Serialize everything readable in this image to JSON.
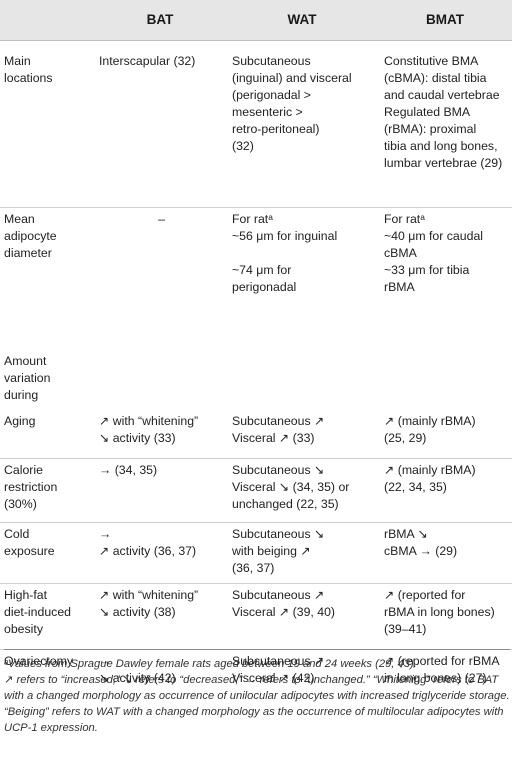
{
  "headers": [
    "",
    "BAT",
    "WAT",
    "BMAT"
  ],
  "rows": [
    {
      "label": "Main\nlocations",
      "bat": "Interscapular (32)",
      "wat": "Subcutaneous\n(inguinal) and visceral\n(perigonadal >\nmesenteric >\nretro-peritoneal)\n(32)",
      "bmat": "Constitutive BMA\n(cBMA): distal tibia\nand caudal vertebrae\nRegulated BMA\n(rBMA): proximal\ntibia and long bones,\nlumbar vertebrae (29)"
    },
    {
      "label": "Mean\nadipocyte\ndiameter",
      "bat": "–",
      "wat": "For ratᵃ\n~56 μm for inguinal\n\n~74 μm for\nperigonadal",
      "bmat": "For ratᵃ\n~40 μm for caudal\ncBMA\n~33 μm for tibia\nrBMA"
    },
    {
      "label": "Amount\nvariation\nduring",
      "bat": "",
      "wat": "",
      "bmat": ""
    },
    {
      "label": "Aging",
      "bat": "↗ with “whitening”\n↘ activity (33)",
      "wat": "Subcutaneous ↗\nVisceral ↗ (33)",
      "bmat": "↗ (mainly rBMA)\n(25, 29)"
    },
    {
      "label": "Calorie\nrestriction\n(30%)",
      "bat": "→ (34, 35)",
      "wat": "Subcutaneous ↘\nVisceral ↘ (34, 35) or\nunchanged (22, 35)",
      "bmat": "↗ (mainly rBMA)\n(22, 34, 35)"
    },
    {
      "label": "Cold\nexposure",
      "bat": "→\n↗ activity (36, 37)",
      "wat": "Subcutaneous ↘\nwith beiging ↗\n(36, 37)",
      "bmat": "rBMA ↘\ncBMA → (29)"
    },
    {
      "label": "High-fat\ndiet-induced\nobesity",
      "bat": "↗ with “whitening”\n↘ activity (38)",
      "wat": "Subcutaneous ↗\nVisceral ↗ (39, 40)",
      "bmat": "↗ (reported for\nrBMA in long bones)\n(39–41)"
    },
    {
      "label": "Ovariectomy",
      "bat": "→\n↘ activity (42)",
      "wat": "Subcutaneous ↗\nVisceral ↗ (42)",
      "bmat": "↗ (reported for rBMA\nin long bones) (27)"
    }
  ],
  "footnote_a": "ᵃValues from Sprague Dawley female rats aged between 19 and 24 weeks (29, 43).",
  "footnote_legend": "↗ refers to “increased,” ↘ refers to “decreased,” → refers to “unchanged.” “Whitening” refers to BAT with a changed morphology as occurrence of unilocular adipocytes with increased triglyceride storage. “Beiging” refers to WAT with a changed morphology as the occurrence of multilocular adipocytes with UCP-1 expression."
}
